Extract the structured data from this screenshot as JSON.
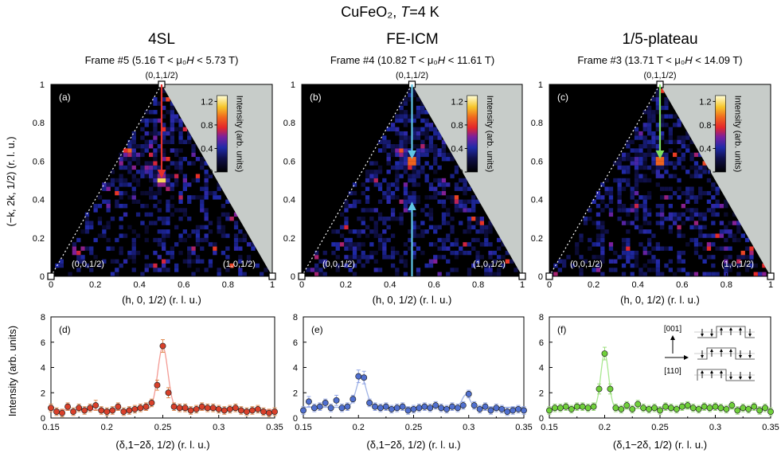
{
  "figure": {
    "title_prefix": "CuFeO₂, ",
    "title_T": "T",
    "title_suffix": "=4 K"
  },
  "colors": {
    "background": "#ffffff",
    "map_background": "#000000",
    "excluded_region": "#c7ccc9",
    "arrow_red": "#e4302a",
    "arrow_cyan": "#5fc6e6",
    "arrow_green": "#7ee060",
    "fit_red": "#f39a94",
    "fit_blue": "#9fb3e6",
    "fit_green": "#a8e890",
    "marker_red": "#d9402a",
    "marker_blue": "#4f6fcf",
    "marker_green": "#6fd03a",
    "err_red": "#e08a50",
    "err_blue": "#93a6e6",
    "err_green": "#9ede7e"
  },
  "columns": [
    {
      "phase": "4SL",
      "frame_prefix": "Frame #5 (5.16 T < μ₀",
      "frame_H": "H",
      "frame_suffix": " < 5.73 T)"
    },
    {
      "phase": "FE-ICM",
      "frame_prefix": "Frame #4 (10.82 T < μ₀",
      "frame_H": "H",
      "frame_suffix": " < 11.61 T)"
    },
    {
      "phase": "1/5-plateau",
      "frame_prefix": "Frame #3 (13.71 T < μ₀",
      "frame_H": "H",
      "frame_suffix": " < 14.09 T)"
    }
  ],
  "maps": {
    "panel_labels": [
      "(a)",
      "(b)",
      "(c)"
    ],
    "point_top": "(0,1,1/2)",
    "point_left": "(0,0,1/2)",
    "point_right": "(1,0,1/2)",
    "x_ticks": [
      "0",
      "0.2",
      "0.4",
      "0.6",
      "0.8",
      "1"
    ],
    "y_ticks": [
      "0",
      "0.2",
      "0.4",
      "0.6",
      "0.8",
      "1"
    ],
    "x_label": "(h, 0, 1/2) (r. l. u.)",
    "y_label": "(−k, 2k, 1/2) (r. l. u.)",
    "colorbar_ticks": [
      "0",
      "0.4",
      "0.8",
      "1.2"
    ],
    "colorbar_label": "Intensity (arb. units)"
  },
  "cuts": {
    "panel_labels": [
      "(d)",
      "(e)",
      "(f)"
    ],
    "x_ticks": [
      "0.15",
      "0.2",
      "0.25",
      "0.3",
      "0.35"
    ],
    "y_ticks": [
      "0",
      "2",
      "4",
      "6",
      "8"
    ],
    "x_label": "(δ,1−2δ, 1/2) (r. l. u.)",
    "y_label": "Intensity (arb. units)",
    "inset_label_top": "[001]",
    "inset_label_bottom": "[110]"
  },
  "chart_data": [
    {
      "type": "heatmap",
      "panel": "(a)",
      "title": "4SL",
      "subtitle": "Frame #5 (5.16 T < μ₀H < 5.73 T)",
      "xlabel": "(h, 0, 1/2) (r. l. u.)",
      "ylabel": "(−k, 2k, 1/2) (r. l. u.)",
      "xlim": [
        0,
        1
      ],
      "ylim": [
        0,
        1
      ],
      "colorbar_range": [
        0,
        1.3
      ],
      "peaks": [
        {
          "h": 0.5,
          "k": 0.5,
          "intensity": 1.3
        },
        {
          "h": 0.35,
          "k": 0.65,
          "intensity": 1.0
        },
        {
          "h": 0.44,
          "k": 0.56,
          "intensity": 0.7
        }
      ],
      "arrows": [
        {
          "from": [
            0.5,
            1.0
          ],
          "to": [
            0.5,
            0.52
          ],
          "color": "red"
        }
      ]
    },
    {
      "type": "heatmap",
      "panel": "(b)",
      "title": "FE-ICM",
      "subtitle": "Frame #4 (10.82 T < μ₀H < 11.61 T)",
      "xlabel": "(h, 0, 1/2) (r. l. u.)",
      "ylabel": "(−k, 2k, 1/2) (r. l. u.)",
      "xlim": [
        0,
        1
      ],
      "ylim": [
        0,
        1
      ],
      "colorbar_range": [
        0,
        1.3
      ],
      "peaks": [
        {
          "h": 0.5,
          "k": 0.6,
          "intensity": 1.2
        },
        {
          "h": 0.45,
          "k": 0.65,
          "intensity": 0.9
        },
        {
          "h": 0.55,
          "k": 0.65,
          "intensity": 0.5
        },
        {
          "h": 0.5,
          "k": 0.4,
          "intensity": 0.5
        }
      ],
      "arrows": [
        {
          "from": [
            0.5,
            1.0
          ],
          "to": [
            0.5,
            0.62
          ],
          "color": "cyan"
        },
        {
          "from": [
            0.5,
            0.0
          ],
          "to": [
            0.5,
            0.38
          ],
          "color": "cyan"
        }
      ]
    },
    {
      "type": "heatmap",
      "panel": "(c)",
      "title": "1/5-plateau",
      "subtitle": "Frame #3 (13.71 T < μ₀H < 14.09 T)",
      "xlabel": "(h, 0, 1/2) (r. l. u.)",
      "ylabel": "(−k, 2k, 1/2) (r. l. u.)",
      "xlim": [
        0,
        1
      ],
      "ylim": [
        0,
        1
      ],
      "colorbar_range": [
        0,
        1.3
      ],
      "peaks": [
        {
          "h": 0.5,
          "k": 0.6,
          "intensity": 1.2
        },
        {
          "h": 0.4,
          "k": 0.6,
          "intensity": 0.6
        }
      ],
      "arrows": [
        {
          "from": [
            0.5,
            1.0
          ],
          "to": [
            0.5,
            0.62
          ],
          "color": "green"
        }
      ]
    },
    {
      "type": "scatter",
      "panel": "(d)",
      "fit": "line",
      "xlabel": "(δ,1−2δ, 1/2) (r. l. u.)",
      "ylabel": "Intensity (arb. units)",
      "xlim": [
        0.15,
        0.35
      ],
      "ylim": [
        0,
        8
      ],
      "x": [
        0.15,
        0.155,
        0.16,
        0.165,
        0.17,
        0.175,
        0.18,
        0.185,
        0.19,
        0.195,
        0.2,
        0.205,
        0.21,
        0.215,
        0.22,
        0.225,
        0.23,
        0.235,
        0.24,
        0.245,
        0.25,
        0.255,
        0.26,
        0.265,
        0.27,
        0.275,
        0.28,
        0.285,
        0.29,
        0.295,
        0.3,
        0.305,
        0.31,
        0.315,
        0.32,
        0.325,
        0.33,
        0.335,
        0.34,
        0.345,
        0.35
      ],
      "y": [
        0.8,
        0.5,
        0.4,
        0.9,
        0.5,
        0.8,
        0.6,
        0.8,
        1.0,
        0.6,
        0.5,
        0.6,
        0.9,
        0.5,
        0.6,
        0.7,
        0.8,
        0.9,
        1.2,
        2.6,
        5.7,
        2.0,
        0.9,
        0.8,
        0.8,
        0.6,
        0.7,
        0.9,
        0.8,
        0.8,
        0.7,
        0.6,
        0.7,
        0.8,
        0.6,
        0.5,
        0.6,
        0.7,
        0.5,
        0.4,
        0.5
      ],
      "err": [
        0.3,
        0.3,
        0.3,
        0.3,
        0.3,
        0.3,
        0.3,
        0.3,
        0.4,
        0.3,
        0.3,
        0.3,
        0.3,
        0.3,
        0.3,
        0.3,
        0.3,
        0.3,
        0.3,
        0.4,
        0.5,
        0.4,
        0.3,
        0.3,
        0.3,
        0.3,
        0.3,
        0.3,
        0.3,
        0.3,
        0.3,
        0.3,
        0.3,
        0.3,
        0.3,
        0.3,
        0.3,
        0.3,
        0.3,
        0.3,
        0.3
      ],
      "fit_model": {
        "baseline": 0.65,
        "peaks": [
          {
            "center": 0.25,
            "amplitude": 5.0,
            "sigma": 0.0045
          }
        ]
      }
    },
    {
      "type": "scatter",
      "panel": "(e)",
      "fit": "line",
      "xlabel": "(δ,1−2δ, 1/2) (r. l. u.)",
      "ylabel": "Intensity (arb. units)",
      "xlim": [
        0.15,
        0.35
      ],
      "ylim": [
        0,
        8
      ],
      "x": [
        0.15,
        0.155,
        0.16,
        0.165,
        0.17,
        0.175,
        0.18,
        0.185,
        0.19,
        0.195,
        0.2,
        0.205,
        0.21,
        0.215,
        0.22,
        0.225,
        0.23,
        0.235,
        0.24,
        0.245,
        0.25,
        0.255,
        0.26,
        0.265,
        0.27,
        0.275,
        0.28,
        0.285,
        0.29,
        0.295,
        0.3,
        0.305,
        0.31,
        0.315,
        0.32,
        0.325,
        0.33,
        0.335,
        0.34,
        0.345,
        0.35
      ],
      "y": [
        0.6,
        1.3,
        0.8,
        0.9,
        1.2,
        0.8,
        1.4,
        0.8,
        0.9,
        1.5,
        3.3,
        3.2,
        1.2,
        0.9,
        0.8,
        0.9,
        0.7,
        0.8,
        0.9,
        0.6,
        0.7,
        0.8,
        0.9,
        0.8,
        1.0,
        0.8,
        0.7,
        0.9,
        0.8,
        1.0,
        1.9,
        1.0,
        0.7,
        0.9,
        0.6,
        0.8,
        0.7,
        0.5,
        0.6,
        0.7,
        0.6
      ],
      "err": [
        0.3,
        0.4,
        0.3,
        0.3,
        0.3,
        0.3,
        0.4,
        0.3,
        0.3,
        0.3,
        0.5,
        0.5,
        0.3,
        0.3,
        0.3,
        0.3,
        0.3,
        0.3,
        0.3,
        0.3,
        0.3,
        0.3,
        0.3,
        0.3,
        0.3,
        0.3,
        0.3,
        0.3,
        0.3,
        0.3,
        0.3,
        0.3,
        0.3,
        0.3,
        0.3,
        0.3,
        0.3,
        0.3,
        0.3,
        0.3,
        0.3
      ],
      "fit_model": {
        "baseline": 0.85,
        "peaks": [
          {
            "center": 0.2025,
            "amplitude": 2.4,
            "sigma": 0.0045
          },
          {
            "center": 0.2975,
            "amplitude": 1.0,
            "sigma": 0.0035
          }
        ]
      }
    },
    {
      "type": "scatter",
      "panel": "(f)",
      "fit": "line",
      "xlabel": "(δ,1−2δ, 1/2) (r. l. u.)",
      "ylabel": "Intensity (arb. units)",
      "xlim": [
        0.15,
        0.35
      ],
      "ylim": [
        0,
        8
      ],
      "x": [
        0.15,
        0.155,
        0.16,
        0.165,
        0.17,
        0.175,
        0.18,
        0.185,
        0.19,
        0.195,
        0.2,
        0.205,
        0.21,
        0.215,
        0.22,
        0.225,
        0.23,
        0.235,
        0.24,
        0.245,
        0.25,
        0.255,
        0.26,
        0.265,
        0.27,
        0.275,
        0.28,
        0.285,
        0.29,
        0.295,
        0.3,
        0.305,
        0.31,
        0.315,
        0.32,
        0.325,
        0.33,
        0.335,
        0.34,
        0.345,
        0.35
      ],
      "y": [
        0.6,
        0.8,
        0.8,
        0.9,
        0.7,
        0.9,
        0.9,
        0.8,
        0.9,
        2.3,
        5.1,
        2.3,
        0.8,
        0.7,
        1.0,
        0.7,
        1.1,
        0.8,
        0.7,
        0.8,
        0.6,
        0.9,
        0.8,
        0.7,
        0.9,
        1.0,
        0.8,
        0.7,
        0.9,
        0.8,
        0.9,
        0.8,
        0.7,
        1.0,
        0.6,
        0.8,
        0.7,
        0.9,
        0.6,
        0.8,
        0.5
      ],
      "err": [
        0.3,
        0.3,
        0.3,
        0.3,
        0.3,
        0.3,
        0.3,
        0.3,
        0.3,
        0.4,
        0.5,
        0.4,
        0.3,
        0.3,
        0.3,
        0.3,
        0.3,
        0.3,
        0.3,
        0.3,
        0.3,
        0.3,
        0.3,
        0.3,
        0.3,
        0.3,
        0.3,
        0.3,
        0.3,
        0.3,
        0.3,
        0.3,
        0.3,
        0.3,
        0.3,
        0.3,
        0.3,
        0.3,
        0.3,
        0.3,
        0.3
      ],
      "fit_model": {
        "baseline": 0.75,
        "peaks": [
          {
            "center": 0.2,
            "amplitude": 4.4,
            "sigma": 0.0035
          }
        ]
      }
    }
  ]
}
